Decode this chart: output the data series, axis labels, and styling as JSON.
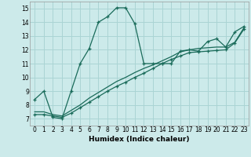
{
  "xlabel": "Humidex (Indice chaleur)",
  "ylabel": "",
  "bg_color": "#cceaea",
  "grid_color": "#aad4d4",
  "line_color": "#1a6b5a",
  "xlim": [
    -0.5,
    23.5
  ],
  "ylim": [
    6.5,
    15.5
  ],
  "xticks": [
    0,
    1,
    2,
    3,
    4,
    5,
    6,
    7,
    8,
    9,
    10,
    11,
    12,
    13,
    14,
    15,
    16,
    17,
    18,
    19,
    20,
    21,
    22,
    23
  ],
  "yticks": [
    7,
    8,
    9,
    10,
    11,
    12,
    13,
    14,
    15
  ],
  "series1_x": [
    0,
    1,
    2,
    3,
    4,
    5,
    6,
    7,
    8,
    9,
    10,
    11,
    12,
    13,
    14,
    15,
    16,
    17,
    18,
    19,
    20,
    21,
    22,
    23
  ],
  "series1_y": [
    8.4,
    9.0,
    7.1,
    7.0,
    9.0,
    11.0,
    12.1,
    14.0,
    14.4,
    15.05,
    15.05,
    13.9,
    11.0,
    11.0,
    11.0,
    11.0,
    11.9,
    12.0,
    11.9,
    12.6,
    12.8,
    12.2,
    13.3,
    13.7
  ],
  "series2_x": [
    0,
    1,
    2,
    3,
    4,
    5,
    6,
    7,
    8,
    9,
    10,
    11,
    12,
    13,
    14,
    15,
    16,
    17,
    18,
    19,
    20,
    21,
    22,
    23
  ],
  "series2_y": [
    7.3,
    7.3,
    7.2,
    7.1,
    7.4,
    7.8,
    8.2,
    8.6,
    9.0,
    9.35,
    9.65,
    10.0,
    10.3,
    10.65,
    11.0,
    11.3,
    11.55,
    11.8,
    11.85,
    11.9,
    11.95,
    12.0,
    12.5,
    13.5
  ],
  "series3_x": [
    0,
    1,
    2,
    3,
    4,
    5,
    6,
    7,
    8,
    9,
    10,
    11,
    12,
    13,
    14,
    15,
    16,
    17,
    18,
    19,
    20,
    21,
    22,
    23
  ],
  "series3_y": [
    7.5,
    7.5,
    7.3,
    7.2,
    7.6,
    8.0,
    8.5,
    8.9,
    9.3,
    9.7,
    10.0,
    10.35,
    10.65,
    10.9,
    11.2,
    11.5,
    11.85,
    12.0,
    12.1,
    12.15,
    12.2,
    12.2,
    12.55,
    13.6
  ]
}
